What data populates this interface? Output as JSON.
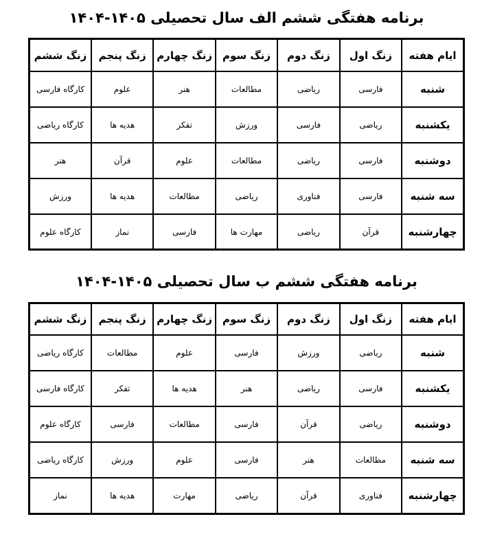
{
  "document": {
    "direction": "rtl",
    "background_color": "#ffffff",
    "text_color": "#000000",
    "border_color": "#000000"
  },
  "tables": [
    {
      "title": "برنامه هفتگی ششم الف سال تحصیلی ۱۴۰۵-۱۴۰۴",
      "columns": [
        "ایام هفته",
        "زنگ اول",
        "زنگ دوم",
        "زنگ سوم",
        "زنگ چهارم",
        "زنگ پنجم",
        "زنگ ششم"
      ],
      "rows": [
        {
          "day": "شنبه",
          "subjects": [
            "فارسی",
            "ریاضی",
            "مطالعات",
            "هنر",
            "علوم",
            "کارگاه فارسی"
          ]
        },
        {
          "day": "یکشنبه",
          "subjects": [
            "ریاضی",
            "فارسی",
            "ورزش",
            "تفکر",
            "هدیه ها",
            "کارگاه ریاضی"
          ]
        },
        {
          "day": "دوشنبه",
          "subjects": [
            "فارسی",
            "ریاضی",
            "مطالعات",
            "علوم",
            "قرآن",
            "هنر"
          ]
        },
        {
          "day": "سه شنبه",
          "subjects": [
            "فارسی",
            "فناوری",
            "ریاضی",
            "مطالعات",
            "هدیه ها",
            "ورزش"
          ]
        },
        {
          "day": "چهارشنبه",
          "subjects": [
            "قرآن",
            "ریاضی",
            "مهارت ها",
            "فارسی",
            "نماز",
            "کارگاه علوم"
          ]
        }
      ]
    },
    {
      "title": "برنامه هفتگی ششم ب سال تحصیلی ۱۴۰۵-۱۴۰۴",
      "columns": [
        "ایام هفته",
        "زنگ اول",
        "زنگ دوم",
        "زنگ سوم",
        "زنگ چهارم",
        "زنگ پنجم",
        "زنگ ششم"
      ],
      "rows": [
        {
          "day": "شنبه",
          "subjects": [
            "ریاضی",
            "ورزش",
            "فارسی",
            "علوم",
            "مطالعات",
            "کارگاه ریاضی"
          ]
        },
        {
          "day": "یکشنبه",
          "subjects": [
            "فارسی",
            "ریاضی",
            "هنر",
            "هدیه ها",
            "تفکر",
            "کارگاه فارسی"
          ]
        },
        {
          "day": "دوشنبه",
          "subjects": [
            "ریاضی",
            "قرآن",
            "فارسی",
            "مطالعات",
            "فارسی",
            "کارگاه علوم"
          ]
        },
        {
          "day": "سه شنبه",
          "subjects": [
            "مطالعات",
            "هنر",
            "فارسی",
            "علوم",
            "ورزش",
            "کارگاه ریاضی"
          ]
        },
        {
          "day": "چهارشنبه",
          "subjects": [
            "فناوری",
            "قرآن",
            "ریاضی",
            "مهارت",
            "هدیه ها",
            "نماز"
          ]
        }
      ]
    }
  ]
}
